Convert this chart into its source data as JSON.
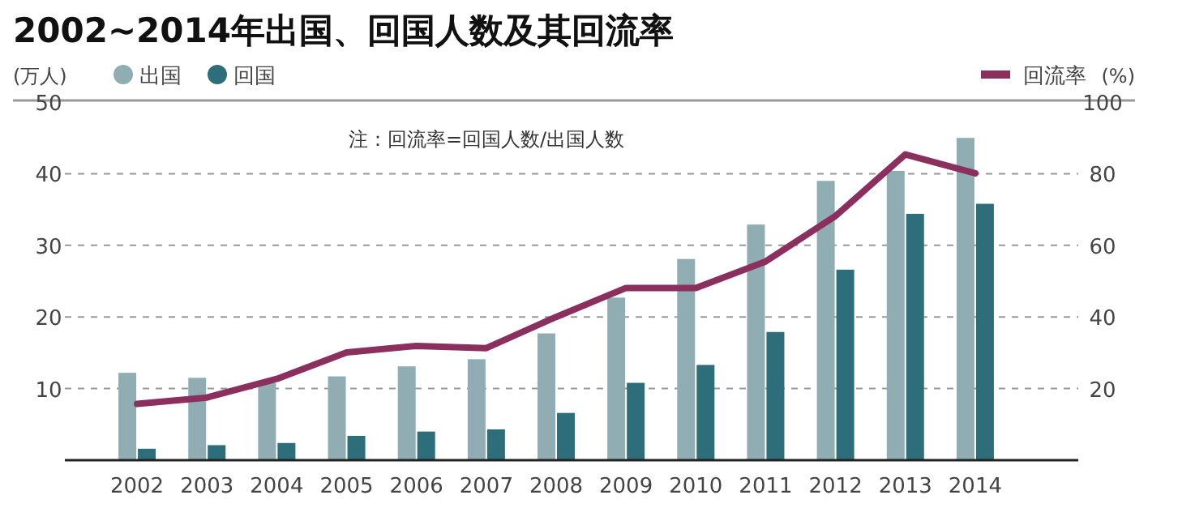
{
  "chart_data": {
    "type": "bar",
    "title": "2002~2014年出国、回国人数及其回流率",
    "ylabel": "(万人)",
    "y2label": "(%)",
    "annotations": [
      "注：回流率=回国人数/出国人数"
    ],
    "categories": [
      "2002",
      "2003",
      "2004",
      "2005",
      "2006",
      "2007",
      "2008",
      "2009",
      "2010",
      "2011",
      "2012",
      "2013",
      "2014"
    ],
    "series": [
      {
        "name": "出国",
        "color": "#8fadb2",
        "values": [
          12.2,
          11.5,
          10.8,
          11.7,
          13.1,
          14.1,
          17.7,
          22.7,
          28.1,
          32.9,
          39.0,
          40.4,
          45.0
        ]
      },
      {
        "name": "回国",
        "color": "#2e6e7a",
        "values": [
          1.6,
          2.1,
          2.4,
          3.4,
          4.0,
          4.3,
          6.6,
          10.8,
          13.3,
          17.9,
          26.6,
          34.4,
          35.8
        ]
      },
      {
        "name": "回流率",
        "type": "line",
        "axis": "y2",
        "color": "#8b2f5e",
        "values": [
          15.7,
          17.5,
          22.7,
          30.1,
          31.9,
          31.3,
          40.0,
          48.1,
          48.1,
          55.5,
          68.2,
          85.4,
          80.1
        ]
      }
    ],
    "ylim": [
      0,
      50
    ],
    "yticks": [
      10,
      20,
      30,
      40,
      50
    ],
    "y2lim": [
      0,
      100
    ],
    "y2ticks": [
      20,
      40,
      60,
      80,
      100
    ],
    "grid": "y",
    "legend": "top",
    "marker": "none",
    "line_style": "solid"
  }
}
